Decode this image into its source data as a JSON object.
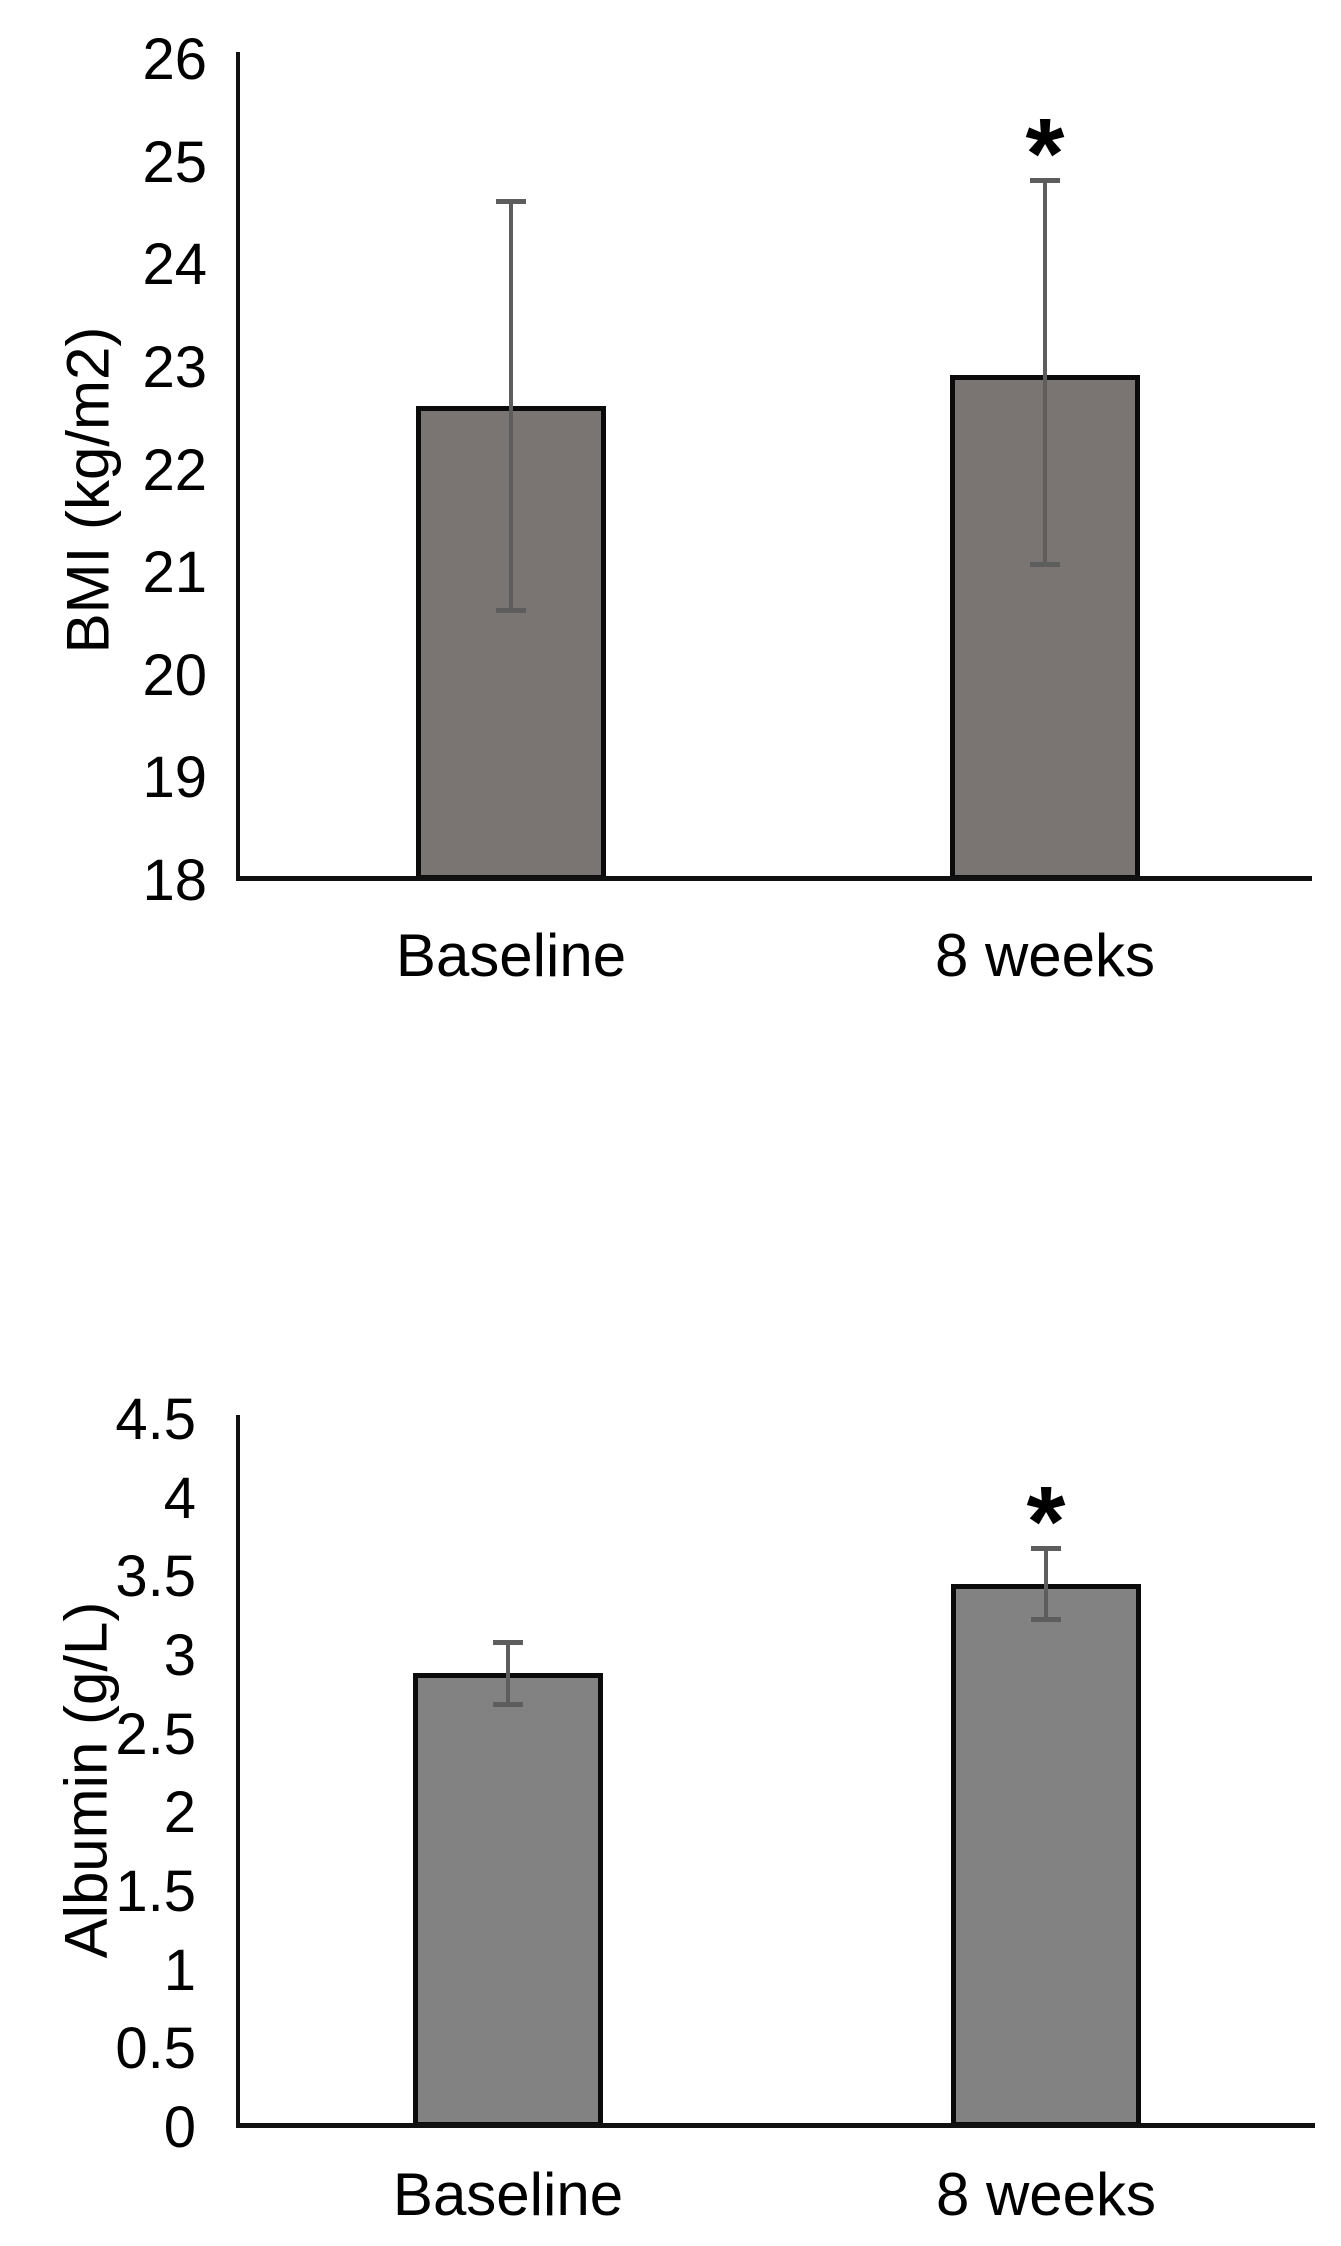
{
  "figure": {
    "background": "#ffffff",
    "text_color": "#000000",
    "axis_color": "#111111"
  },
  "chart_data": [
    {
      "type": "bar",
      "title": "",
      "ylabel": "BMI (kg/m2)",
      "xlabel": "",
      "categories": [
        "Baseline",
        "8 weeks"
      ],
      "values": [
        22.6,
        22.9
      ],
      "error_low": [
        20.6,
        21.05
      ],
      "error_high": [
        24.6,
        24.8
      ],
      "significance": [
        "",
        "*"
      ],
      "ylim": [
        18,
        26
      ],
      "ytick_labels": [
        "26",
        "25",
        "24",
        "23",
        "22",
        "21",
        "20",
        "19",
        "18"
      ],
      "grid": false,
      "legend": "none",
      "bar_fill": "#7a7473",
      "bar_border": "#0b0b0b",
      "error_color": "#5d5d5d"
    },
    {
      "type": "bar",
      "title": "",
      "ylabel": "Albumin (g/L)",
      "xlabel": "",
      "categories": [
        "Baseline",
        "8 weeks"
      ],
      "values": [
        2.87,
        3.44
      ],
      "error_low": [
        2.67,
        3.21
      ],
      "error_high": [
        3.07,
        3.67
      ],
      "significance": [
        "",
        "*"
      ],
      "ylim": [
        0,
        4.5
      ],
      "ytick_labels": [
        "4.5",
        "4",
        "3.5",
        "3",
        "2.5",
        "2",
        "1.5",
        "1",
        "0.5",
        "0"
      ],
      "grid": false,
      "legend": "none",
      "bar_fill": "#828282",
      "bar_border": "#0b0b0b",
      "error_color": "#5d5d5d"
    }
  ]
}
